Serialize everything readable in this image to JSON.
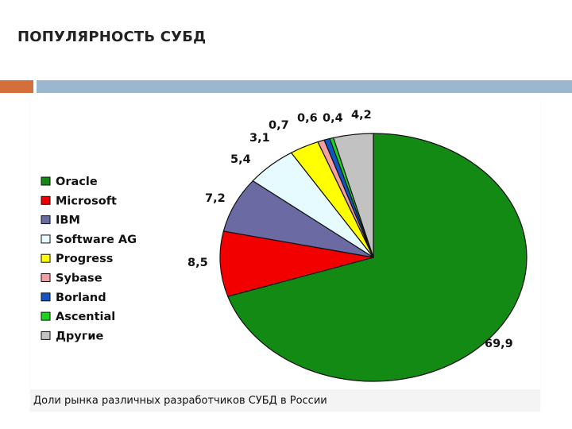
{
  "slide": {
    "title": "ПОПУЛЯРНОСТЬ СУБД"
  },
  "chart_data": {
    "type": "pie",
    "title": "",
    "caption": "Доли рынка различных разработчиков СУБД в России",
    "legend_position": "left",
    "slices": [
      {
        "name": "Oracle",
        "value": 69.9,
        "label": "69,9",
        "color": "#138a13"
      },
      {
        "name": "Microsoft",
        "value": 8.5,
        "label": "8,5",
        "color": "#f20000"
      },
      {
        "name": "IBM",
        "value": 7.2,
        "label": "7,2",
        "color": "#6b6aa3"
      },
      {
        "name": "Software AG",
        "value": 5.4,
        "label": "5,4",
        "color": "#e6fbff"
      },
      {
        "name": "Progress",
        "value": 3.1,
        "label": "3,1",
        "color": "#ffff00"
      },
      {
        "name": "Sybase",
        "value": 0.7,
        "label": "0,7",
        "color": "#f4a0a0"
      },
      {
        "name": "Borland",
        "value": 0.6,
        "label": "0,6",
        "color": "#1055c8"
      },
      {
        "name": "Ascential",
        "value": 0.4,
        "label": "0,4",
        "color": "#1ad61a"
      },
      {
        "name": "Другие",
        "value": 4.2,
        "label": "4,2",
        "color": "#c2c2c2"
      }
    ]
  }
}
